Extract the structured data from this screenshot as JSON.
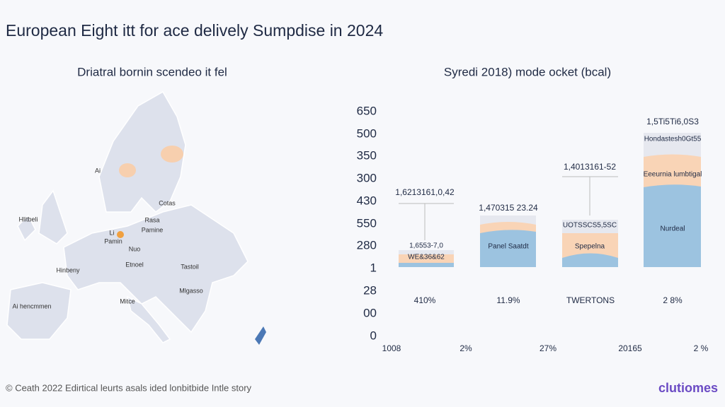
{
  "header": {
    "title": "European Eight itt for ace delively Sumpdise in 2024"
  },
  "map": {
    "title": "Driatral bornin scendeo it fel",
    "labels": [
      "Rasa",
      "Pamine",
      "Ai",
      "Li",
      "Pamin",
      "Hinbeny",
      "Ai hencmmen",
      "Hlitbeli",
      "Nuo",
      "Etnoel",
      "Tastoil",
      "Mlgasso",
      "Mitce",
      "Cotas"
    ]
  },
  "chart": {
    "title": "Syredi 2018) mode ocket (bcal)",
    "y_labels": [
      "650",
      "500",
      "350",
      "300",
      "430",
      "550",
      "280",
      "1",
      "28",
      "00",
      "0"
    ],
    "bars": [
      {
        "top_label": "1,6213161,0,42",
        "inner_labels": [
          "1,6553-7,0",
          "WE&36&62"
        ],
        "bottom_label": "410%"
      },
      {
        "top_label": "1,470315 23.24",
        "inner_labels": [
          "Panel Saatdt"
        ],
        "bottom_label": "11.9%"
      },
      {
        "top_label": "1,4013161-52",
        "inner_labels": [
          "UOTSSCS5,5SC",
          "Spepelna"
        ],
        "bottom_label": "TWERTONS"
      },
      {
        "top_label": "1,5Ti5Ti6,0S3",
        "inner_labels": [
          "Hondastesh0Gt55",
          "Eeeurnia lumbtigal",
          "Nurdeal"
        ],
        "bottom_label": "2 8%"
      }
    ],
    "x_labels": [
      "1008",
      "2%",
      "27%",
      "20165",
      "2 %"
    ]
  },
  "footer": {
    "note": "© Ceath 2022 Edirtical leurts asals ided lonbitbide Intle story",
    "logo": "clutiomes"
  }
}
